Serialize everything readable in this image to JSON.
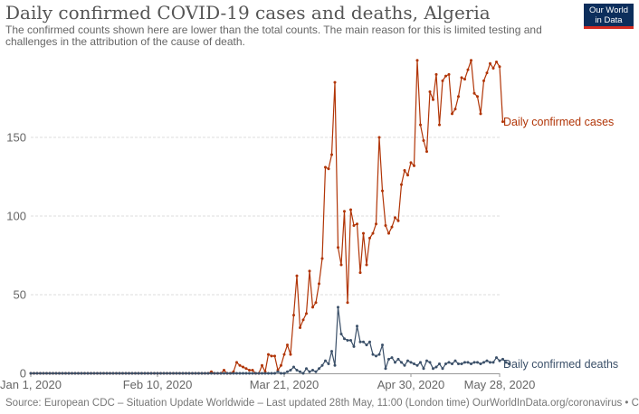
{
  "header": {
    "title": "Daily confirmed COVID-19 cases and deaths, Algeria",
    "subtitle": "The confirmed counts shown here are lower than the total counts. The main reason for this is limited testing and challenges in the attribution of the cause of death.",
    "logo_line1": "Our World",
    "logo_line2": "in Data"
  },
  "footer": {
    "source": "Source: European CDC – Situation Update Worldwide – Last updated 28th May, 11:00 (London time) OurWorldInData.org/coronavirus • CC BY"
  },
  "colors": {
    "cases": "#b13507",
    "deaths": "#3b5069",
    "grid": "#dddddd",
    "axis": "#999999"
  },
  "chart_data": {
    "type": "line",
    "title": "Daily confirmed COVID-19 cases and deaths, Algeria",
    "xlabel": "",
    "ylabel": "",
    "x_start": "2020-01-01",
    "x_end": "2020-05-28",
    "xlim": [
      "2020-01-01",
      "2020-05-28"
    ],
    "ylim": [
      0,
      200
    ],
    "grid": true,
    "legend": "inline-right",
    "x_ticks": [
      {
        "date": "2020-01-01",
        "label": "Jan 1, 2020"
      },
      {
        "date": "2020-02-10",
        "label": "Feb 10, 2020"
      },
      {
        "date": "2020-03-21",
        "label": "Mar 21, 2020"
      },
      {
        "date": "2020-04-30",
        "label": "Apr 30, 2020"
      },
      {
        "date": "2020-05-28",
        "label": "May 28, 2020"
      }
    ],
    "y_ticks": [
      0,
      50,
      100,
      150
    ],
    "series": [
      {
        "name": "Daily confirmed cases",
        "values": [
          0,
          0,
          0,
          0,
          0,
          0,
          0,
          0,
          0,
          0,
          0,
          0,
          0,
          0,
          0,
          0,
          0,
          0,
          0,
          0,
          0,
          0,
          0,
          0,
          0,
          0,
          0,
          0,
          0,
          0,
          0,
          0,
          0,
          0,
          0,
          0,
          0,
          0,
          0,
          0,
          0,
          0,
          0,
          0,
          0,
          0,
          0,
          0,
          0,
          0,
          0,
          0,
          0,
          0,
          0,
          0,
          0,
          1,
          0,
          0,
          0,
          2,
          0,
          0,
          1,
          7,
          5,
          4,
          3,
          2,
          2,
          0,
          0,
          5,
          1,
          12,
          11,
          11,
          2,
          5,
          12,
          18,
          12,
          37,
          62,
          29,
          34,
          38,
          65,
          42,
          45,
          57,
          73,
          131,
          130,
          139,
          185,
          80,
          69,
          103,
          45,
          104,
          94,
          95,
          64,
          89,
          69,
          86,
          89,
          95,
          150,
          116,
          94,
          89,
          93,
          99,
          97,
          120,
          129,
          126,
          134,
          132,
          199,
          158,
          148,
          141,
          179,
          174,
          190,
          158,
          186,
          189,
          190,
          165,
          168,
          176,
          188,
          187,
          193,
          199,
          178,
          176,
          165,
          186,
          191,
          197,
          194,
          198,
          195,
          160
        ],
        "color": "#b13507"
      },
      {
        "name": "Daily confirmed deaths",
        "values": [
          0,
          0,
          0,
          0,
          0,
          0,
          0,
          0,
          0,
          0,
          0,
          0,
          0,
          0,
          0,
          0,
          0,
          0,
          0,
          0,
          0,
          0,
          0,
          0,
          0,
          0,
          0,
          0,
          0,
          0,
          0,
          0,
          0,
          0,
          0,
          0,
          0,
          0,
          0,
          0,
          0,
          0,
          0,
          0,
          0,
          0,
          0,
          0,
          0,
          0,
          0,
          0,
          0,
          0,
          0,
          0,
          0,
          0,
          0,
          0,
          0,
          0,
          0,
          0,
          0,
          0,
          0,
          0,
          0,
          0,
          0,
          0,
          0,
          0,
          0,
          0,
          0,
          0,
          1,
          0,
          0,
          1,
          2,
          4,
          2,
          1,
          0,
          3,
          1,
          2,
          1,
          3,
          5,
          8,
          6,
          14,
          5,
          42,
          25,
          22,
          21,
          21,
          17,
          30,
          20,
          20,
          18,
          20,
          12,
          11,
          12,
          18,
          3,
          9,
          10,
          7,
          9,
          7,
          5,
          8,
          7,
          6,
          5,
          7,
          3,
          8,
          7,
          3,
          4,
          6,
          3,
          6,
          7,
          6,
          8,
          6,
          6,
          7,
          7,
          6,
          7,
          7,
          6,
          7,
          8,
          7,
          7,
          10,
          8,
          9,
          7,
          6
        ],
        "color": "#3b5069"
      }
    ]
  }
}
